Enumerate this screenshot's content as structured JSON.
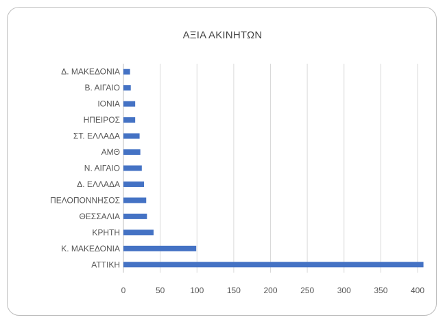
{
  "chart_data": {
    "type": "bar",
    "orientation": "horizontal",
    "title": "ΑΞΙΑ ΑΚΙΝΗΤΩΝ",
    "categories": [
      "Δ. ΜΑΚΕΔΟΝΙΑ",
      "Β. ΑΙΓΑΙΟ",
      "ΙΟΝΙΑ",
      "ΗΠΕΙΡΟΣ",
      "ΣΤ. ΕΛΛΑΔΑ",
      "ΑΜΘ",
      "Ν. ΑΙΓΑΙΟ",
      "Δ. ΕΛΛΑΔΑ",
      "ΠΕΛΟΠΟΝΝΗΣΟΣ",
      "ΘΕΣΣΑΛΙΑ",
      "ΚΡΗΤΗ",
      "Κ. ΜΑΚΕΔΟΝΙΑ",
      "ΑΤΤΙΚΗ"
    ],
    "values": [
      9,
      10,
      16,
      16,
      22,
      23,
      25,
      28,
      31,
      32,
      41,
      99,
      408
    ],
    "xlim": [
      0,
      400
    ],
    "xticks": [
      "0",
      "50",
      "100",
      "150",
      "200",
      "250",
      "300",
      "350",
      "400"
    ],
    "grid": true,
    "bar_color": "#4472c4"
  }
}
